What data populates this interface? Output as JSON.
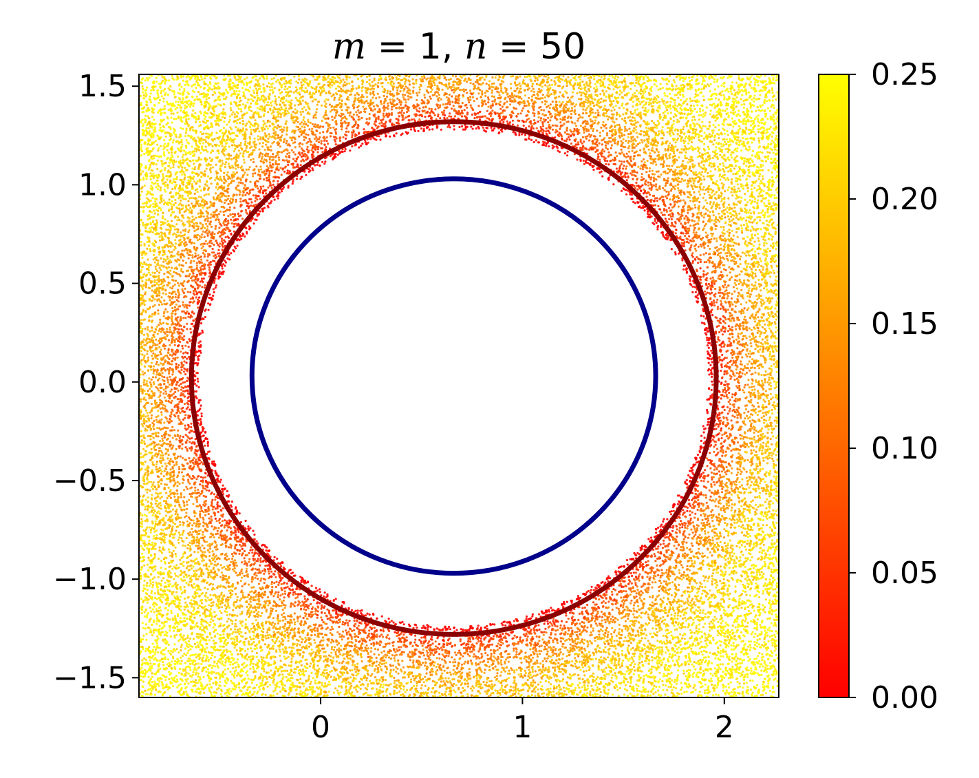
{
  "chart_data": {
    "type": "scatter",
    "title": "m = 1, n = 50",
    "title_parts": [
      {
        "text": "m",
        "italic": true
      },
      {
        "text": " = 1, ",
        "italic": false
      },
      {
        "text": "n",
        "italic": true
      },
      {
        "text": " = 50",
        "italic": false
      }
    ],
    "xlabel": "",
    "ylabel": "",
    "xlim": [
      -0.9,
      2.27
    ],
    "ylim": [
      -1.6,
      1.56
    ],
    "x_ticks": [
      0,
      1,
      2
    ],
    "x_tick_labels": [
      "0",
      "1",
      "2"
    ],
    "y_ticks": [
      1.5,
      1.0,
      0.5,
      0.0,
      -0.5,
      -1.0,
      -1.5
    ],
    "y_tick_labels": [
      "1.5",
      "1.0",
      "0.5",
      "0.0",
      "−0.5",
      "−1.0",
      "−1.5"
    ],
    "grid": false,
    "series": [
      {
        "kind": "scatter",
        "colormap": "autumn",
        "color_value_range": [
          0.0,
          0.25
        ],
        "point_count": 24000,
        "region": "square domain excluding a disk centered at (0.66, 0.02) of radius 1.30; color grows with distance from the circle"
      },
      {
        "kind": "circle",
        "color": "#8b0000",
        "center": [
          0.66,
          0.02
        ],
        "radius": 1.3
      },
      {
        "kind": "circle",
        "color": "#00008b",
        "center": [
          0.66,
          0.03
        ],
        "radius": 1.0
      }
    ],
    "colorbar": {
      "colormap": "autumn",
      "range": [
        0.0,
        0.25
      ],
      "ticks": [
        0.0,
        0.05,
        0.1,
        0.15,
        0.2,
        0.25
      ],
      "tick_labels": [
        "0.00",
        "0.05",
        "0.10",
        "0.15",
        "0.20",
        "0.25"
      ],
      "colors": {
        "low": "#ff0000",
        "high": "#ffff00"
      }
    }
  }
}
